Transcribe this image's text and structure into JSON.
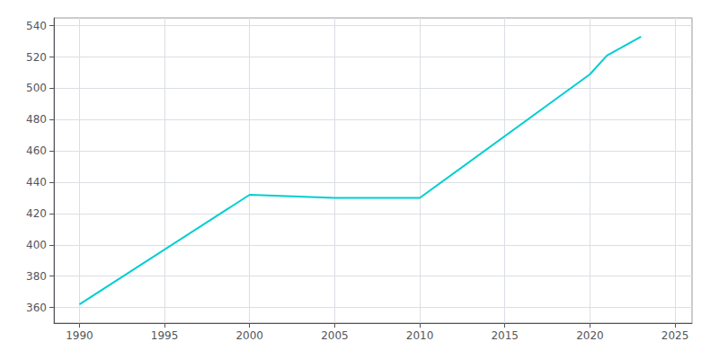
{
  "chart_data": {
    "type": "line",
    "x": [
      1990,
      2000,
      2005,
      2010,
      2020,
      2021,
      2022,
      2023
    ],
    "values": [
      362,
      432,
      430,
      430,
      509,
      521,
      527,
      533
    ],
    "color": "#00CED1",
    "xlim": [
      1988.5,
      2026
    ],
    "ylim": [
      350,
      545
    ],
    "xticks": [
      1990,
      1995,
      2000,
      2005,
      2010,
      2015,
      2020,
      2025
    ],
    "yticks": [
      360,
      380,
      400,
      420,
      440,
      460,
      480,
      500,
      520,
      540
    ],
    "grid": true
  }
}
